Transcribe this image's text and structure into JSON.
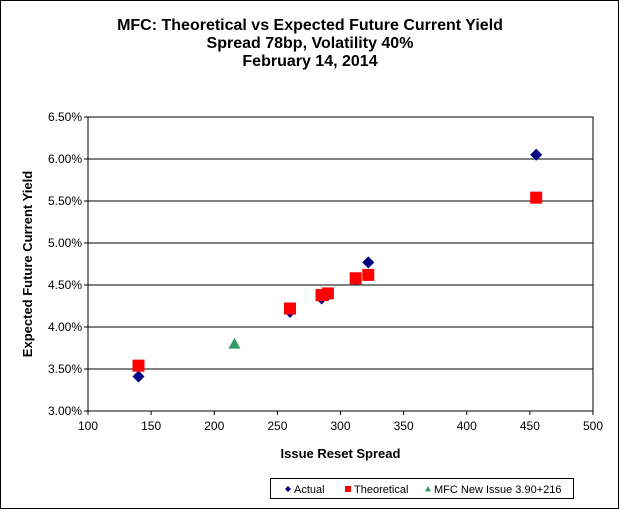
{
  "chart_data": {
    "type": "scatter",
    "title": [
      "MFC: Theoretical vs Expected Future Current Yield",
      "Spread 78bp, Volatility 40%",
      "February 14, 2014"
    ],
    "xlabel": "Issue Reset Spread",
    "ylabel": "Expected Future Current Yield",
    "xlim": [
      100,
      500
    ],
    "ylim": [
      3.0,
      6.5
    ],
    "xticks": [
      "100",
      "150",
      "200",
      "250",
      "300",
      "350",
      "400",
      "450",
      "500"
    ],
    "yticks": [
      "3.00%",
      "3.50%",
      "4.00%",
      "4.50%",
      "5.00%",
      "5.50%",
      "6.00%",
      "6.50%"
    ],
    "grid": "horizontal",
    "legend_position": "bottom",
    "series": [
      {
        "name": "Actual",
        "marker": "diamond",
        "color": "#000080",
        "x": [
          140,
          260,
          285,
          290,
          312,
          322,
          455
        ],
        "y": [
          3.41,
          4.18,
          4.34,
          4.38,
          4.57,
          4.77,
          6.05
        ]
      },
      {
        "name": "Theoretical",
        "marker": "square",
        "color": "#ff0000",
        "x": [
          140,
          260,
          285,
          290,
          312,
          322,
          455
        ],
        "y": [
          3.54,
          4.22,
          4.38,
          4.4,
          4.58,
          4.62,
          5.54
        ]
      },
      {
        "name": "MFC New Issue 3.90+216",
        "marker": "triangle",
        "color": "#339966",
        "x": [
          216
        ],
        "y": [
          3.8
        ]
      }
    ]
  }
}
